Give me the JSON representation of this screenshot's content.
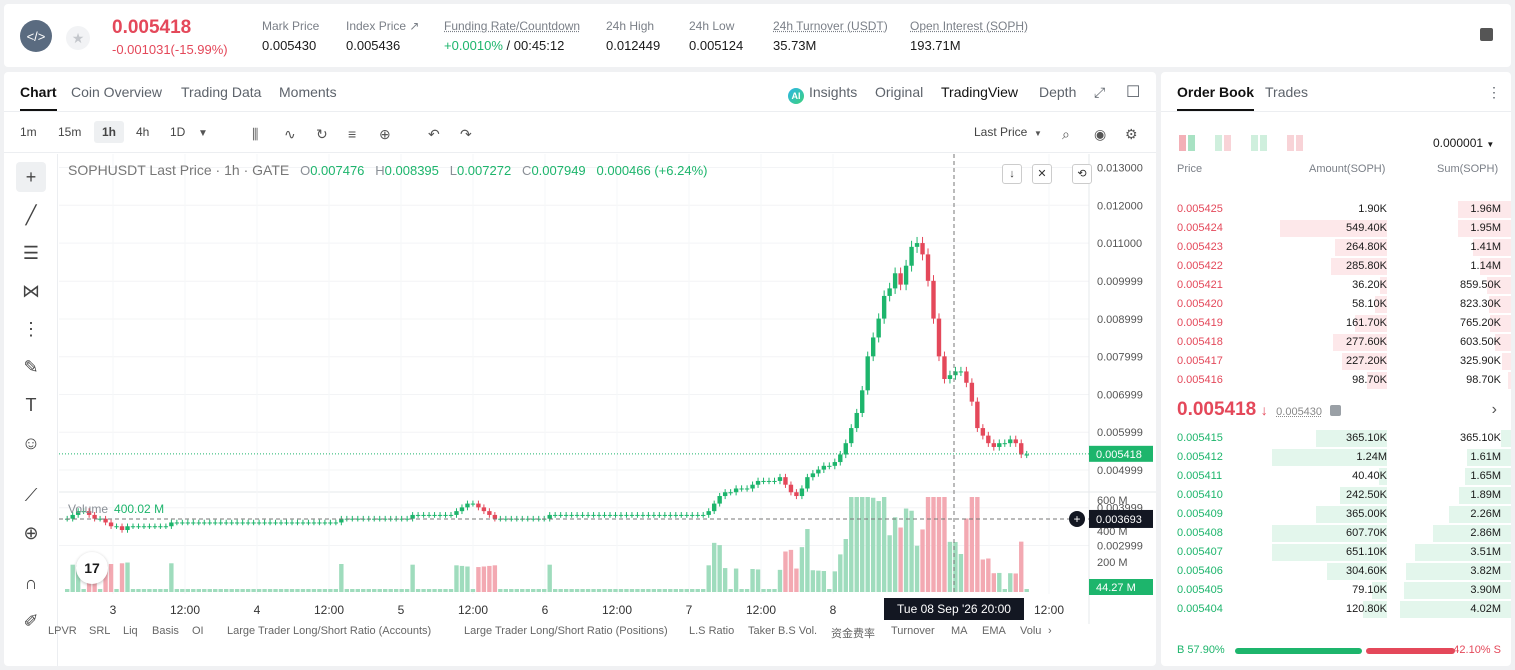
{
  "header": {
    "logo_icon": "sophon-logo",
    "last_price": "0.005418",
    "change": "-0.001031(-15.99%)",
    "stats": [
      {
        "label": "Mark Price",
        "value": "0.005430"
      },
      {
        "label": "Index Price ↗",
        "value": "0.005436"
      },
      {
        "label": "Funding Rate/Countdown",
        "value_green": "+0.0010%",
        "value": " / 00:45:12"
      },
      {
        "label": "24h High",
        "value": "0.012449"
      },
      {
        "label": "24h Low",
        "value": "0.005124"
      },
      {
        "label": "24h Turnover (USDT)",
        "value": "35.73M"
      },
      {
        "label": "Open Interest (SOPH)",
        "value": "193.71M"
      }
    ]
  },
  "chart_tabs": [
    "Chart",
    "Coin Overview",
    "Trading Data",
    "Moments"
  ],
  "view_tabs": [
    "Insights",
    "Original",
    "TradingView",
    "Depth"
  ],
  "ai_badge": "AI",
  "timeframes": [
    "1m",
    "15m",
    "1h",
    "4h",
    "1D"
  ],
  "price_type": "Last Price",
  "ohlc": {
    "title": "SOPHUSDT Last Price · 1h · GATE",
    "o_label": "O",
    "o": "0.007476",
    "h_label": "H",
    "h": "0.008395",
    "l_label": "L",
    "l": "0.007272",
    "c_label": "C",
    "c": "0.007949",
    "chg": "0.000466 (+6.24%)"
  },
  "volume": {
    "label": "Volume",
    "value": "400.02 M"
  },
  "tv_logo": "17",
  "chart_data": {
    "type": "candlestick",
    "y_ticks": [
      "0.013000",
      "0.012000",
      "0.011000",
      "0.009999",
      "0.008999",
      "0.007999",
      "0.006999",
      "0.005999",
      "0.004999",
      "0.003999",
      "0.002999"
    ],
    "vol_ticks": [
      "600 M",
      "400 M",
      "200 M"
    ],
    "x_ticks": [
      "3",
      "12:00",
      "4",
      "12:00",
      "5",
      "12:00",
      "6",
      "12:00",
      "7",
      "12:00",
      "8",
      "12:00"
    ],
    "last_price_label": "0.005418",
    "crosshair_price_label": "0.003693",
    "crosshair_time_label": "Tue 08 Sep '26   20:00",
    "volume_last_label": "44.27 M",
    "closes": [
      0.0037,
      0.0038,
      0.0039,
      0.0039,
      0.0038,
      0.0037,
      0.0037,
      0.0036,
      0.0035,
      0.0035,
      0.0034,
      0.0035,
      0.0035,
      0.0035,
      0.0035,
      0.0035,
      0.0035,
      0.0035,
      0.0035,
      0.0036,
      0.0036,
      0.0036,
      0.0036,
      0.0036,
      0.0036,
      0.0036,
      0.0036,
      0.0036,
      0.0036,
      0.0036,
      0.0036,
      0.0036,
      0.0036,
      0.0036,
      0.0036,
      0.0036,
      0.0036,
      0.0036,
      0.0036,
      0.0036,
      0.0036,
      0.0036,
      0.0036,
      0.0036,
      0.0036,
      0.0036,
      0.0036,
      0.0036,
      0.0036,
      0.0036,
      0.0037,
      0.0037,
      0.0037,
      0.0037,
      0.0037,
      0.0037,
      0.0037,
      0.0037,
      0.0037,
      0.0037,
      0.0037,
      0.0037,
      0.0037,
      0.0038,
      0.0038,
      0.0038,
      0.0038,
      0.0038,
      0.0038,
      0.0038,
      0.0038,
      0.0039,
      0.004,
      0.0041,
      0.0041,
      0.004,
      0.0039,
      0.0038,
      0.0037,
      0.0037,
      0.0037,
      0.0037,
      0.0037,
      0.0037,
      0.0037,
      0.0037,
      0.0037,
      0.0037,
      0.0038,
      0.0038,
      0.0038,
      0.0038,
      0.0038,
      0.0038,
      0.0038,
      0.0038,
      0.0038,
      0.0038,
      0.0038,
      0.0038,
      0.0038,
      0.0038,
      0.0038,
      0.0038,
      0.0038,
      0.0038,
      0.0038,
      0.0038,
      0.0038,
      0.0038,
      0.0038,
      0.0038,
      0.0038,
      0.0038,
      0.0038,
      0.0038,
      0.0038,
      0.0039,
      0.0041,
      0.0043,
      0.0044,
      0.0044,
      0.0045,
      0.0045,
      0.0045,
      0.0046,
      0.0047,
      0.0047,
      0.0047,
      0.0047,
      0.0048,
      0.0046,
      0.0044,
      0.0043,
      0.0045,
      0.0048,
      0.0049,
      0.005,
      0.0051,
      0.0051,
      0.0052,
      0.0054,
      0.0057,
      0.0061,
      0.0065,
      0.0071,
      0.008,
      0.0085,
      0.009,
      0.0096,
      0.0098,
      0.0102,
      0.0099,
      0.0104,
      0.0109,
      0.011,
      0.0107,
      0.01,
      0.009,
      0.008,
      0.0074,
      0.0075,
      0.0076,
      0.0076,
      0.0073,
      0.0068,
      0.0061,
      0.0059,
      0.0057,
      0.0056,
      0.0057,
      0.0057,
      0.0058,
      0.0057,
      0.0054,
      0.0054
    ]
  },
  "bottom_items": [
    "LPVR",
    "SRL",
    "Liq",
    "Basis",
    "OI",
    "Large Trader Long/Short Ratio (Accounts)",
    "Large Trader Long/Short Ratio (Positions)",
    "L.S Ratio",
    "Taker B.S Vol.",
    "资金费率",
    "Turnover",
    "MA",
    "EMA",
    "Volu"
  ],
  "orderbook": {
    "tabs": [
      "Order Book",
      "Trades"
    ],
    "precision": "0.000001",
    "headers": [
      "Price",
      "Amount(SOPH)",
      "Sum(SOPH)"
    ],
    "asks": [
      {
        "price": "0.005425",
        "amount": "1.90K",
        "sum": "1.96M",
        "af": 0.0,
        "sf": 0.36
      },
      {
        "price": "0.005424",
        "amount": "549.40K",
        "sum": "1.95M",
        "af": 0.93,
        "sf": 0.36
      },
      {
        "price": "0.005423",
        "amount": "264.80K",
        "sum": "1.41M",
        "af": 0.45,
        "sf": 0.26
      },
      {
        "price": "0.005422",
        "amount": "285.80K",
        "sum": "1.14M",
        "af": 0.49,
        "sf": 0.21
      },
      {
        "price": "0.005421",
        "amount": "36.20K",
        "sum": "859.50K",
        "af": 0.06,
        "sf": 0.16
      },
      {
        "price": "0.005420",
        "amount": "58.10K",
        "sum": "823.30K",
        "af": 0.1,
        "sf": 0.15
      },
      {
        "price": "0.005419",
        "amount": "161.70K",
        "sum": "765.20K",
        "af": 0.28,
        "sf": 0.14
      },
      {
        "price": "0.005418",
        "amount": "277.60K",
        "sum": "603.50K",
        "af": 0.47,
        "sf": 0.11
      },
      {
        "price": "0.005417",
        "amount": "227.20K",
        "sum": "325.90K",
        "af": 0.39,
        "sf": 0.06
      },
      {
        "price": "0.005416",
        "amount": "98.70K",
        "sum": "98.70K",
        "af": 0.17,
        "sf": 0.02
      }
    ],
    "mid_price": "0.005418",
    "mid_arrow": "↓",
    "mark": "0.005430",
    "bids": [
      {
        "price": "0.005415",
        "amount": "365.10K",
        "sum": "365.10K",
        "af": 0.62,
        "sf": 0.07
      },
      {
        "price": "0.005412",
        "amount": "1.24M",
        "sum": "1.61M",
        "af": 1.0,
        "sf": 0.3
      },
      {
        "price": "0.005411",
        "amount": "40.40K",
        "sum": "1.65M",
        "af": 0.07,
        "sf": 0.31
      },
      {
        "price": "0.005410",
        "amount": "242.50K",
        "sum": "1.89M",
        "af": 0.41,
        "sf": 0.35
      },
      {
        "price": "0.005409",
        "amount": "365.00K",
        "sum": "2.26M",
        "af": 0.62,
        "sf": 0.42
      },
      {
        "price": "0.005408",
        "amount": "607.70K",
        "sum": "2.86M",
        "af": 1.0,
        "sf": 0.53
      },
      {
        "price": "0.005407",
        "amount": "651.10K",
        "sum": "3.51M",
        "af": 1.0,
        "sf": 0.65
      },
      {
        "price": "0.005406",
        "amount": "304.60K",
        "sum": "3.82M",
        "af": 0.52,
        "sf": 0.71
      },
      {
        "price": "0.005405",
        "amount": "79.10K",
        "sum": "3.90M",
        "af": 0.13,
        "sf": 0.72
      },
      {
        "price": "0.005404",
        "amount": "120.80K",
        "sum": "4.02M",
        "af": 0.21,
        "sf": 0.75
      }
    ],
    "buy_ratio": "57.90%",
    "sell_ratio": "42.10%",
    "buy_letter": "B",
    "sell_letter": "S",
    "buy_fraction": 0.579
  },
  "colors": {
    "up": "#1db56c",
    "down": "#e4485a"
  }
}
